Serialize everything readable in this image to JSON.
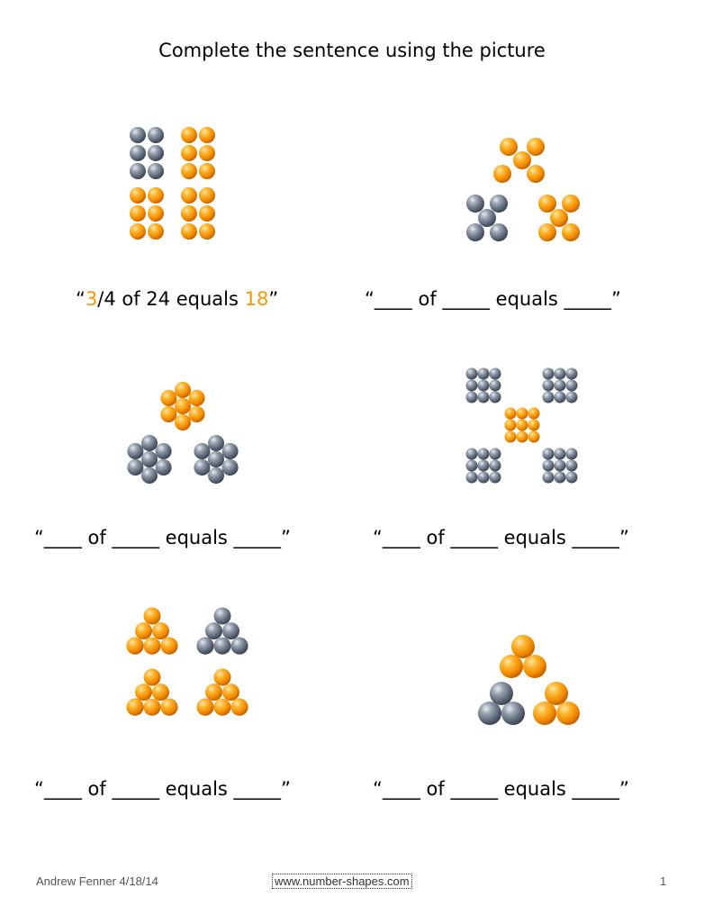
{
  "title": "Complete the sentence using the picture",
  "problems": [
    {
      "open": "“",
      "part1": "3",
      "part2": "/4 of 24 equals ",
      "part3": "18",
      "close": "”"
    },
    {
      "text": "“____ of _____ equals _____”"
    },
    {
      "text": "“____ of _____ equals _____”"
    },
    {
      "text": "“____ of _____ equals _____”"
    },
    {
      "text": "“____ of _____ equals _____”"
    },
    {
      "text": "“____ of _____ equals _____”"
    }
  ],
  "footer": {
    "author": "Andrew Fenner 4/18/14",
    "link": "www.number-shapes.com",
    "page": "1"
  },
  "colors": {
    "orange": "#f39a00",
    "grey": "#6e7a8c",
    "highlight": "#f39a00"
  }
}
